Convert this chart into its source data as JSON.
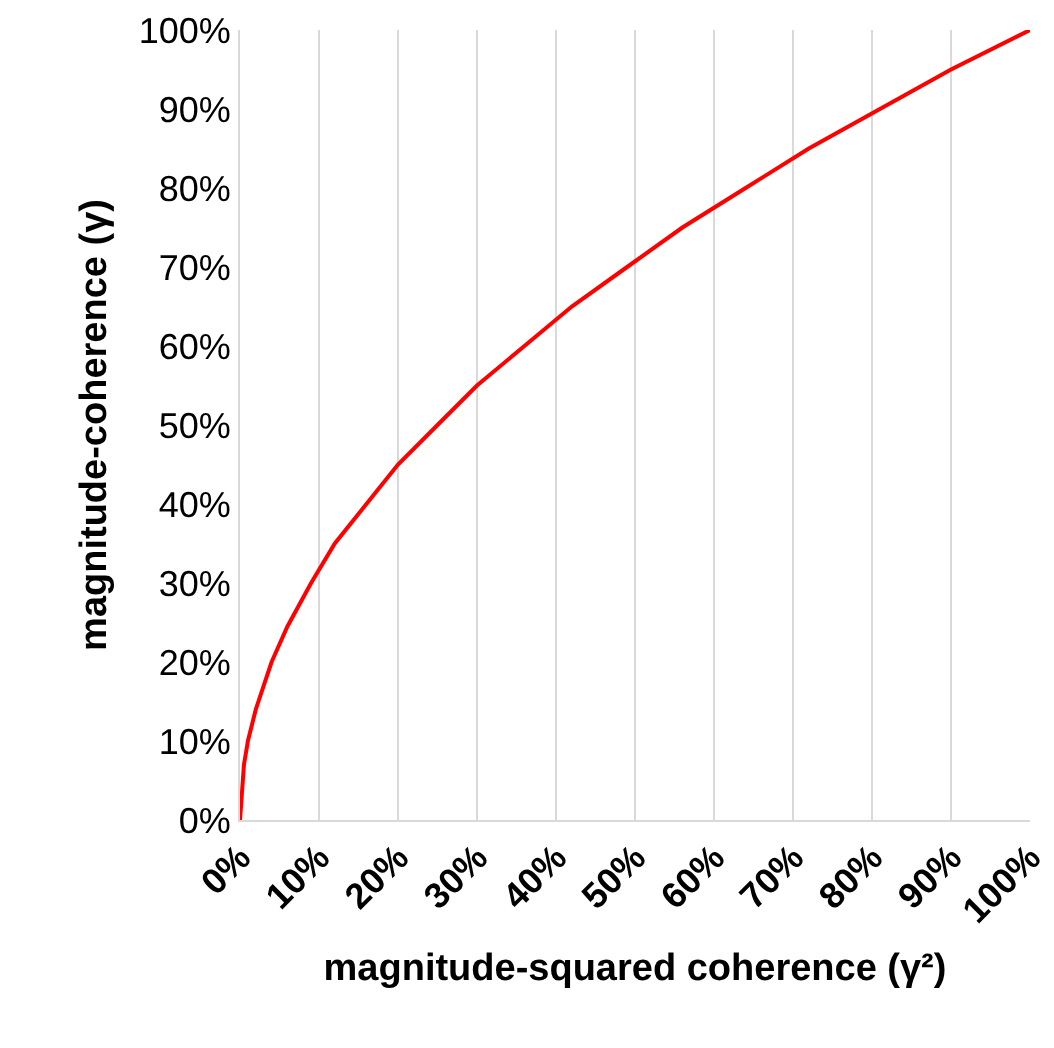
{
  "chart_data": {
    "type": "line",
    "xlabel": "magnitude-squared coherence (γ²)",
    "ylabel": "magnitude-coherence (γ)",
    "x": [
      0,
      0.5,
      1,
      2,
      3,
      4,
      6,
      9,
      12,
      16,
      20,
      25,
      30,
      36,
      42,
      49,
      56,
      64,
      72,
      81,
      90,
      100
    ],
    "series": [
      {
        "color": "#ff0000",
        "values": [
          0,
          7,
          10,
          14,
          17,
          20,
          24.5,
          30,
          35,
          40,
          45,
          50,
          55,
          60,
          65,
          70,
          75,
          80,
          85,
          90,
          95,
          100
        ]
      }
    ],
    "xlim": [
      0,
      100
    ],
    "ylim": [
      0,
      100
    ],
    "xticks": [
      {
        "value": 0,
        "label": "0%"
      },
      {
        "value": 10,
        "label": "10%"
      },
      {
        "value": 20,
        "label": "20%"
      },
      {
        "value": 30,
        "label": "30%"
      },
      {
        "value": 40,
        "label": "40%"
      },
      {
        "value": 50,
        "label": "50%"
      },
      {
        "value": 60,
        "label": "60%"
      },
      {
        "value": 70,
        "label": "70%"
      },
      {
        "value": 80,
        "label": "80%"
      },
      {
        "value": 90,
        "label": "90%"
      },
      {
        "value": 100,
        "label": "100%"
      }
    ],
    "yticks": [
      {
        "value": 0,
        "label": "0%"
      },
      {
        "value": 10,
        "label": "10%"
      },
      {
        "value": 20,
        "label": "20%"
      },
      {
        "value": 30,
        "label": "30%"
      },
      {
        "value": 40,
        "label": "40%"
      },
      {
        "value": 50,
        "label": "50%"
      },
      {
        "value": 60,
        "label": "60%"
      },
      {
        "value": 70,
        "label": "70%"
      },
      {
        "value": 80,
        "label": "80%"
      },
      {
        "value": 90,
        "label": "90%"
      },
      {
        "value": 100,
        "label": "100%"
      }
    ],
    "grid": "x",
    "marker": "none",
    "line_style": "solid"
  }
}
